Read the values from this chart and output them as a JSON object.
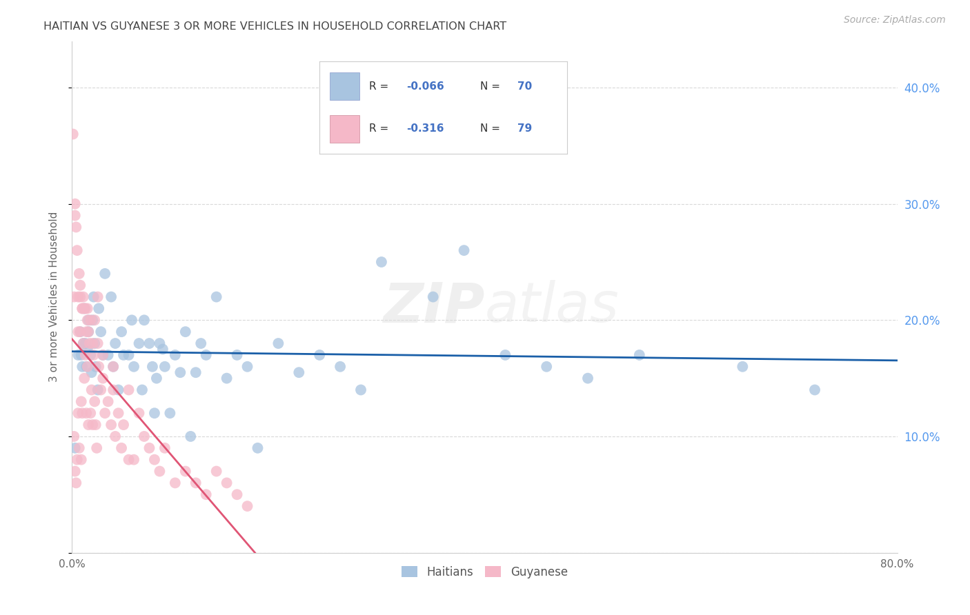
{
  "title": "HAITIAN VS GUYANESE 3 OR MORE VEHICLES IN HOUSEHOLD CORRELATION CHART",
  "source": "Source: ZipAtlas.com",
  "ylabel": "3 or more Vehicles in Household",
  "xlim": [
    0.0,
    0.8
  ],
  "ylim": [
    0.0,
    0.44
  ],
  "watermark": "ZIPatlas",
  "haitian_color": "#a8c4e0",
  "guyanese_color": "#f5b8c8",
  "haitian_line_color": "#1a5fa8",
  "guyanese_line_color": "#e05575",
  "haitian_R": -0.066,
  "haitian_N": 70,
  "guyanese_R": -0.316,
  "guyanese_N": 79,
  "haitian_x": [
    0.003,
    0.006,
    0.008,
    0.009,
    0.01,
    0.011,
    0.012,
    0.013,
    0.014,
    0.015,
    0.016,
    0.016,
    0.018,
    0.019,
    0.02,
    0.021,
    0.022,
    0.023,
    0.025,
    0.026,
    0.028,
    0.03,
    0.032,
    0.035,
    0.038,
    0.04,
    0.042,
    0.045,
    0.048,
    0.05,
    0.055,
    0.058,
    0.06,
    0.065,
    0.068,
    0.07,
    0.075,
    0.078,
    0.08,
    0.082,
    0.085,
    0.088,
    0.09,
    0.095,
    0.1,
    0.105,
    0.11,
    0.115,
    0.12,
    0.125,
    0.13,
    0.14,
    0.15,
    0.16,
    0.17,
    0.18,
    0.2,
    0.22,
    0.24,
    0.26,
    0.28,
    0.3,
    0.35,
    0.38,
    0.42,
    0.46,
    0.5,
    0.55,
    0.65,
    0.72
  ],
  "haitian_y": [
    0.09,
    0.17,
    0.19,
    0.17,
    0.16,
    0.18,
    0.21,
    0.18,
    0.16,
    0.175,
    0.2,
    0.19,
    0.17,
    0.155,
    0.2,
    0.22,
    0.18,
    0.16,
    0.14,
    0.21,
    0.19,
    0.17,
    0.24,
    0.17,
    0.22,
    0.16,
    0.18,
    0.14,
    0.19,
    0.17,
    0.17,
    0.2,
    0.16,
    0.18,
    0.14,
    0.2,
    0.18,
    0.16,
    0.12,
    0.15,
    0.18,
    0.175,
    0.16,
    0.12,
    0.17,
    0.155,
    0.19,
    0.1,
    0.155,
    0.18,
    0.17,
    0.22,
    0.15,
    0.17,
    0.16,
    0.09,
    0.18,
    0.155,
    0.17,
    0.16,
    0.14,
    0.25,
    0.22,
    0.26,
    0.17,
    0.16,
    0.15,
    0.17,
    0.16,
    0.14
  ],
  "guyanese_x": [
    0.001,
    0.002,
    0.002,
    0.003,
    0.003,
    0.004,
    0.004,
    0.005,
    0.005,
    0.006,
    0.006,
    0.007,
    0.007,
    0.008,
    0.008,
    0.009,
    0.009,
    0.01,
    0.01,
    0.011,
    0.011,
    0.012,
    0.012,
    0.013,
    0.013,
    0.014,
    0.014,
    0.015,
    0.015,
    0.016,
    0.016,
    0.017,
    0.018,
    0.018,
    0.019,
    0.02,
    0.02,
    0.021,
    0.022,
    0.022,
    0.023,
    0.024,
    0.025,
    0.026,
    0.028,
    0.03,
    0.032,
    0.035,
    0.038,
    0.04,
    0.042,
    0.045,
    0.048,
    0.05,
    0.055,
    0.06,
    0.065,
    0.07,
    0.075,
    0.08,
    0.085,
    0.09,
    0.1,
    0.11,
    0.12,
    0.13,
    0.14,
    0.15,
    0.16,
    0.17,
    0.04,
    0.025,
    0.015,
    0.01,
    0.055,
    0.03,
    0.008,
    0.003,
    0.006
  ],
  "guyanese_y": [
    0.36,
    0.1,
    0.22,
    0.29,
    0.07,
    0.28,
    0.06,
    0.26,
    0.08,
    0.22,
    0.12,
    0.24,
    0.09,
    0.22,
    0.19,
    0.13,
    0.08,
    0.21,
    0.12,
    0.22,
    0.18,
    0.21,
    0.15,
    0.21,
    0.17,
    0.19,
    0.12,
    0.21,
    0.16,
    0.19,
    0.11,
    0.18,
    0.2,
    0.12,
    0.14,
    0.18,
    0.11,
    0.17,
    0.2,
    0.13,
    0.11,
    0.09,
    0.22,
    0.16,
    0.14,
    0.17,
    0.12,
    0.13,
    0.11,
    0.14,
    0.1,
    0.12,
    0.09,
    0.11,
    0.14,
    0.08,
    0.12,
    0.1,
    0.09,
    0.08,
    0.07,
    0.09,
    0.06,
    0.07,
    0.06,
    0.05,
    0.07,
    0.06,
    0.05,
    0.04,
    0.16,
    0.18,
    0.2,
    0.21,
    0.08,
    0.15,
    0.23,
    0.3,
    0.19
  ],
  "background_color": "#ffffff",
  "grid_color": "#d0d0d0",
  "title_color": "#444444",
  "source_color": "#aaaaaa",
  "right_ytick_color": "#5599ee",
  "legend_value_color": "#4472c4"
}
